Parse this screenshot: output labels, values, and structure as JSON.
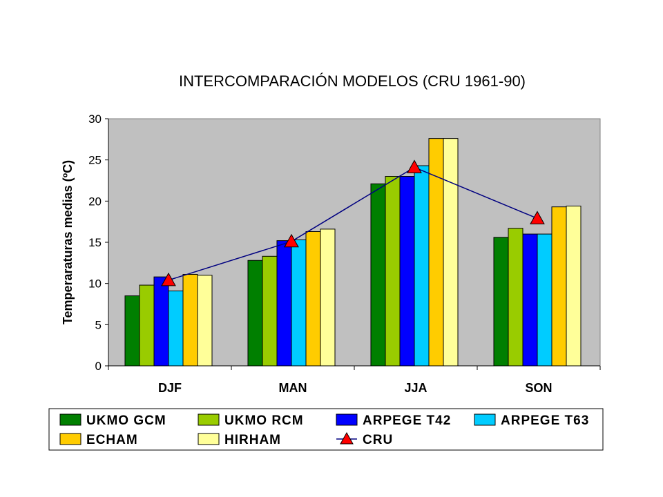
{
  "chart_data": {
    "type": "bar",
    "title": "INTERCOMPARACIÓN MODELOS (CRU 1961-90)",
    "ylabel": "Temperaraturas medias (ºC)",
    "xlabel": "",
    "ylim": [
      0,
      30
    ],
    "yticks": [
      "0",
      "5",
      "10",
      "15",
      "20",
      "25",
      "30"
    ],
    "categories": [
      "DJF",
      "MAN",
      "JJA",
      "SON"
    ],
    "grid": false,
    "plot_background": "#c0c0c0",
    "legend_position": "bottom",
    "series": [
      {
        "name": "UKMO GCM",
        "color": "#007f00",
        "values": [
          8.5,
          12.8,
          22.1,
          15.6
        ]
      },
      {
        "name": "UKMO RCM",
        "color": "#99cc00",
        "values": [
          9.8,
          13.3,
          23.0,
          16.7
        ]
      },
      {
        "name": "ARPEGE T42",
        "color": "#0000ff",
        "values": [
          10.8,
          15.2,
          23.0,
          16.0
        ]
      },
      {
        "name": "ARPEGE T63",
        "color": "#00ccff",
        "values": [
          9.1,
          15.3,
          24.3,
          16.0
        ]
      },
      {
        "name": "ECHAM",
        "color": "#ffcc00",
        "values": [
          11.1,
          16.3,
          27.6,
          19.3
        ]
      },
      {
        "name": "HIRHAM",
        "color": "#ffff99",
        "values": [
          11.0,
          16.6,
          27.6,
          19.4
        ]
      }
    ],
    "line_series": [
      {
        "name": "CRU",
        "type": "line",
        "line_color": "#000080",
        "marker": "triangle",
        "marker_color": "#ff0000",
        "values": [
          10.4,
          15.1,
          24.1,
          17.9
        ]
      }
    ]
  }
}
